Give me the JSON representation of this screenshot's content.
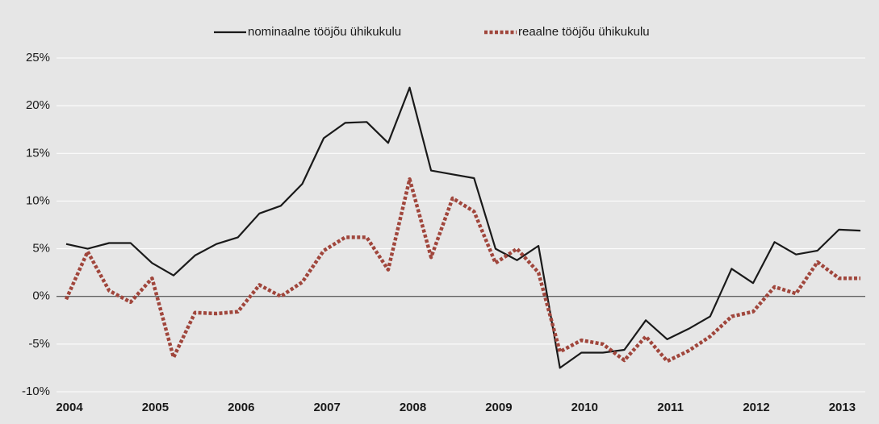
{
  "chart_data": {
    "type": "line",
    "categories": [
      "2004",
      null,
      null,
      null,
      "2005",
      null,
      null,
      null,
      "2006",
      null,
      null,
      null,
      "2007",
      null,
      null,
      null,
      "2008",
      null,
      null,
      null,
      "2009",
      null,
      null,
      null,
      "2010",
      null,
      null,
      null,
      "2011",
      null,
      null,
      null,
      "2012",
      null,
      null,
      null,
      "2013",
      null
    ],
    "series": [
      {
        "name": "nominaalne tööjõu ühikukulu",
        "color": "#1a1a1a",
        "dash": false,
        "values": [
          5.5,
          5.0,
          5.6,
          5.6,
          3.5,
          2.2,
          4.3,
          5.5,
          6.2,
          8.7,
          9.5,
          11.8,
          16.6,
          18.2,
          18.3,
          16.1,
          21.9,
          13.2,
          12.8,
          12.4,
          5.0,
          3.8,
          5.3,
          -7.5,
          -5.9,
          -5.9,
          -5.6,
          -2.5,
          -4.5,
          -3.4,
          -2.1,
          2.9,
          1.4,
          5.7,
          4.4,
          4.8,
          7.0,
          6.9
        ]
      },
      {
        "name": "reaalne tööjõu ühikukulu",
        "color": "#a0463c",
        "dash": true,
        "values": [
          -0.3,
          4.7,
          0.6,
          -0.6,
          1.9,
          -6.4,
          -1.7,
          -1.8,
          -1.6,
          1.2,
          0.0,
          1.5,
          4.8,
          6.2,
          6.2,
          2.8,
          12.3,
          4.1,
          10.3,
          8.9,
          3.5,
          5.0,
          2.5,
          -5.8,
          -4.6,
          -5.0,
          -6.7,
          -4.2,
          -6.8,
          -5.7,
          -4.2,
          -2.1,
          -1.6,
          1.0,
          0.3,
          3.6,
          1.9,
          1.9
        ]
      }
    ],
    "ylim": [
      -10,
      25
    ],
    "yticks": [
      {
        "value": -10,
        "label": "-10%"
      },
      {
        "value": -5,
        "label": "-5%"
      },
      {
        "value": 0,
        "label": "0%"
      },
      {
        "value": 5,
        "label": "5%"
      },
      {
        "value": 10,
        "label": "10%"
      },
      {
        "value": 15,
        "label": "15%"
      },
      {
        "value": 20,
        "label": "20%"
      },
      {
        "value": 25,
        "label": "25%"
      }
    ],
    "grid": true,
    "legend": "top"
  }
}
